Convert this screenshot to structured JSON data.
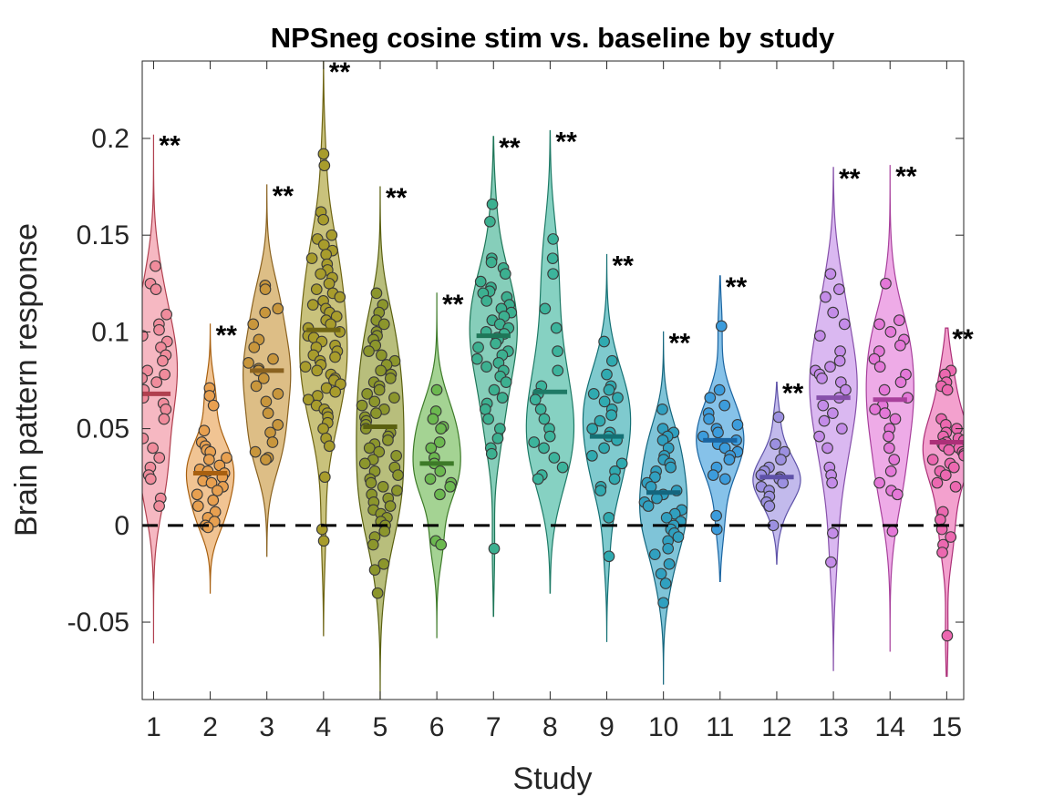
{
  "chart_data": {
    "type": "violin",
    "title": "NPSneg cosine stim vs. baseline by study",
    "xlabel": "Study",
    "ylabel": "Brain pattern response",
    "ylim": [
      -0.09,
      0.24
    ],
    "xlim": [
      0.8,
      15.3
    ],
    "yticks": [
      -0.05,
      0,
      0.05,
      0.1,
      0.15,
      0.2
    ],
    "ytick_labels": [
      "-0.05",
      "0",
      "0.05",
      "0.1",
      "0.15",
      "0.2"
    ],
    "categories": [
      "1",
      "2",
      "3",
      "4",
      "5",
      "6",
      "7",
      "8",
      "9",
      "10",
      "11",
      "12",
      "13",
      "14",
      "15"
    ],
    "reference_line": 0,
    "grid": false,
    "series": [
      {
        "study": "1",
        "color": "#f08c9c",
        "edge": "#b0404f",
        "median": 0.068,
        "min": -0.061,
        "max": 0.202,
        "significance": "**",
        "points": [
          0.134,
          0.125,
          0.122,
          0.109,
          0.104,
          0.101,
          0.098,
          0.095,
          0.092,
          0.088,
          0.085,
          0.08,
          0.078,
          0.076,
          0.074,
          0.07,
          0.066,
          0.063,
          0.06,
          0.055,
          0.045,
          0.04,
          0.035,
          0.03,
          0.026,
          0.024,
          0.014,
          0.01
        ]
      },
      {
        "study": "2",
        "color": "#e8a050",
        "edge": "#a86010",
        "median": 0.027,
        "min": -0.035,
        "max": 0.104,
        "significance": "**",
        "points": [
          0.071,
          0.067,
          0.062,
          0.049,
          0.043,
          0.041,
          0.039,
          0.038,
          0.035,
          0.034,
          0.031,
          0.029,
          0.028,
          0.027,
          0.025,
          0.023,
          0.022,
          0.02,
          0.018,
          0.016,
          0.013,
          0.01,
          0.007,
          0.004,
          0.002,
          0.0,
          -0.001
        ]
      },
      {
        "study": "3",
        "color": "#c8963c",
        "edge": "#8a6220",
        "median": 0.08,
        "min": -0.016,
        "max": 0.176,
        "significance": "**",
        "points": [
          0.124,
          0.122,
          0.112,
          0.11,
          0.104,
          0.096,
          0.092,
          0.086,
          0.084,
          0.081,
          0.08,
          0.076,
          0.072,
          0.068,
          0.064,
          0.058,
          0.052,
          0.048,
          0.043,
          0.038,
          0.035,
          0.034
        ]
      },
      {
        "study": "4",
        "color": "#a89c2c",
        "edge": "#6f6514",
        "median": 0.101,
        "min": -0.057,
        "max": 0.24,
        "significance": "**",
        "points": [
          0.192,
          0.186,
          0.162,
          0.158,
          0.15,
          0.148,
          0.145,
          0.142,
          0.14,
          0.138,
          0.135,
          0.132,
          0.13,
          0.128,
          0.125,
          0.122,
          0.12,
          0.118,
          0.116,
          0.114,
          0.112,
          0.11,
          0.108,
          0.106,
          0.104,
          0.102,
          0.1,
          0.098,
          0.097,
          0.095,
          0.093,
          0.092,
          0.09,
          0.088,
          0.087,
          0.085,
          0.083,
          0.082,
          0.08,
          0.078,
          0.076,
          0.075,
          0.073,
          0.071,
          0.069,
          0.067,
          0.065,
          0.062,
          0.06,
          0.058,
          0.056,
          0.053,
          0.05,
          0.045,
          0.041,
          0.025,
          -0.002,
          -0.008
        ]
      },
      {
        "study": "5",
        "color": "#8c962c",
        "edge": "#5a6010",
        "median": 0.051,
        "min": -0.091,
        "max": 0.175,
        "significance": "**",
        "points": [
          0.12,
          0.114,
          0.11,
          0.106,
          0.104,
          0.1,
          0.098,
          0.096,
          0.093,
          0.09,
          0.088,
          0.085,
          0.083,
          0.08,
          0.078,
          0.076,
          0.074,
          0.072,
          0.07,
          0.068,
          0.066,
          0.064,
          0.062,
          0.06,
          0.058,
          0.056,
          0.054,
          0.052,
          0.05,
          0.048,
          0.046,
          0.044,
          0.042,
          0.04,
          0.038,
          0.036,
          0.034,
          0.032,
          0.03,
          0.028,
          0.026,
          0.024,
          0.022,
          0.02,
          0.018,
          0.016,
          0.014,
          0.012,
          0.01,
          0.008,
          0.006,
          0.004,
          0.002,
          0.0,
          -0.003,
          -0.006,
          -0.01,
          -0.02,
          -0.023,
          -0.035
        ]
      },
      {
        "study": "6",
        "color": "#6cb850",
        "edge": "#3d7a28",
        "median": 0.032,
        "min": -0.058,
        "max": 0.12,
        "significance": "**",
        "points": [
          0.07,
          0.059,
          0.055,
          0.051,
          0.05,
          0.043,
          0.04,
          0.035,
          0.032,
          0.028,
          0.024,
          0.022,
          0.02,
          0.016,
          -0.008,
          -0.01
        ]
      },
      {
        "study": "7",
        "color": "#3cb090",
        "edge": "#1e7658",
        "median": 0.098,
        "min": -0.047,
        "max": 0.201,
        "significance": "**",
        "points": [
          0.166,
          0.157,
          0.138,
          0.136,
          0.133,
          0.13,
          0.126,
          0.123,
          0.121,
          0.12,
          0.118,
          0.116,
          0.114,
          0.112,
          0.11,
          0.108,
          0.106,
          0.104,
          0.102,
          0.1,
          0.099,
          0.097,
          0.096,
          0.094,
          0.092,
          0.09,
          0.088,
          0.086,
          0.084,
          0.082,
          0.08,
          0.077,
          0.074,
          0.07,
          0.066,
          0.063,
          0.06,
          0.055,
          0.05,
          0.045,
          0.04,
          0.037,
          -0.012
        ]
      },
      {
        "study": "8",
        "color": "#3cb49c",
        "edge": "#1e7a66",
        "median": 0.069,
        "min": -0.035,
        "max": 0.204,
        "significance": "**",
        "points": [
          0.148,
          0.138,
          0.13,
          0.112,
          0.102,
          0.09,
          0.08,
          0.072,
          0.068,
          0.065,
          0.06,
          0.055,
          0.05,
          0.046,
          0.043,
          0.04,
          0.035,
          0.03,
          0.026,
          0.024
        ]
      },
      {
        "study": "9",
        "color": "#30aab0",
        "edge": "#147074",
        "median": 0.046,
        "min": -0.06,
        "max": 0.14,
        "significance": "**",
        "points": [
          0.095,
          0.085,
          0.078,
          0.072,
          0.07,
          0.068,
          0.066,
          0.064,
          0.06,
          0.057,
          0.054,
          0.05,
          0.048,
          0.046,
          0.044,
          0.04,
          0.036,
          0.032,
          0.028,
          0.024,
          0.02,
          0.018,
          0.004,
          -0.016
        ]
      },
      {
        "study": "10",
        "color": "#30a0c0",
        "edge": "#14667e",
        "median": 0.017,
        "min": -0.082,
        "max": 0.1,
        "significance": "**",
        "points": [
          0.06,
          0.05,
          0.048,
          0.046,
          0.044,
          0.04,
          0.036,
          0.034,
          0.032,
          0.03,
          0.028,
          0.025,
          0.022,
          0.02,
          0.018,
          0.016,
          0.014,
          0.012,
          0.01,
          0.008,
          0.006,
          0.004,
          0.002,
          0.0,
          -0.002,
          -0.004,
          -0.006,
          -0.008,
          -0.012,
          -0.015,
          -0.02,
          -0.025,
          -0.03,
          -0.04
        ]
      },
      {
        "study": "11",
        "color": "#3c9cdc",
        "edge": "#1a64a0",
        "median": 0.044,
        "min": -0.029,
        "max": 0.129,
        "significance": "**",
        "points": [
          0.103,
          0.07,
          0.066,
          0.062,
          0.058,
          0.055,
          0.052,
          0.05,
          0.048,
          0.046,
          0.044,
          0.042,
          0.04,
          0.038,
          0.036,
          0.034,
          0.03,
          0.026,
          0.024,
          0.005,
          -0.002
        ]
      },
      {
        "study": "12",
        "color": "#9c90e0",
        "edge": "#5e52a8",
        "median": 0.025,
        "min": -0.02,
        "max": 0.074,
        "significance": "**",
        "points": [
          0.056,
          0.042,
          0.038,
          0.034,
          0.03,
          0.028,
          0.026,
          0.025,
          0.024,
          0.022,
          0.02,
          0.018,
          0.015,
          0.012,
          0.01,
          0.0
        ]
      },
      {
        "study": "13",
        "color": "#c48ce8",
        "edge": "#8650aa",
        "median": 0.066,
        "min": -0.075,
        "max": 0.185,
        "significance": "**",
        "points": [
          0.13,
          0.122,
          0.118,
          0.11,
          0.104,
          0.098,
          0.09,
          0.085,
          0.082,
          0.08,
          0.078,
          0.076,
          0.074,
          0.07,
          0.066,
          0.062,
          0.058,
          0.054,
          0.05,
          0.046,
          0.04,
          0.03,
          0.026,
          0.022,
          -0.004,
          -0.019
        ]
      },
      {
        "study": "14",
        "color": "#e478d8",
        "edge": "#a8409c",
        "median": 0.065,
        "min": -0.065,
        "max": 0.186,
        "significance": "**",
        "points": [
          0.125,
          0.106,
          0.104,
          0.1,
          0.096,
          0.093,
          0.09,
          0.086,
          0.082,
          0.078,
          0.074,
          0.07,
          0.066,
          0.062,
          0.06,
          0.058,
          0.055,
          0.05,
          0.046,
          0.04,
          0.034,
          0.028,
          0.022,
          0.018,
          0.016,
          -0.003
        ]
      },
      {
        "study": "15",
        "color": "#ec68b0",
        "edge": "#ac3078",
        "median": 0.043,
        "min": -0.078,
        "max": 0.102,
        "significance": "**",
        "points": [
          0.08,
          0.078,
          0.074,
          0.072,
          0.07,
          0.055,
          0.052,
          0.05,
          0.048,
          0.046,
          0.045,
          0.044,
          0.043,
          0.042,
          0.041,
          0.04,
          0.039,
          0.038,
          0.037,
          0.036,
          0.034,
          0.032,
          0.03,
          0.028,
          0.026,
          0.022,
          0.02,
          0.007,
          0.003,
          -0.002,
          -0.006,
          -0.01,
          -0.014,
          -0.057
        ]
      }
    ]
  }
}
